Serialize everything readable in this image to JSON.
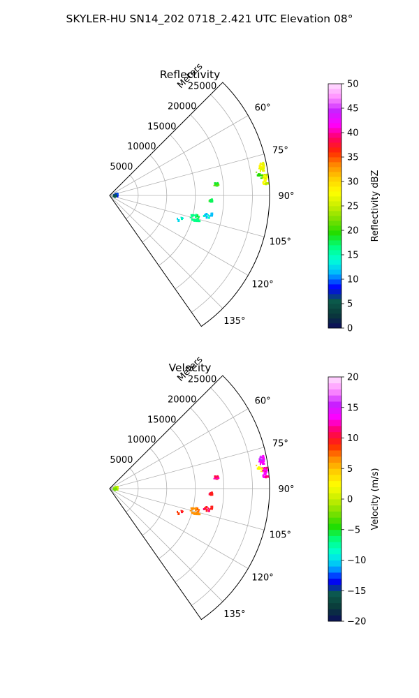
{
  "figure": {
    "suptitle": "SKYLER-HU  SN14_202  0718_2.421 UTC Elevation 08°"
  },
  "chart_data": [
    {
      "type": "polar-sector-scatter",
      "title": "Reflectivity",
      "radial_axis": {
        "label": "Meters",
        "ticks": [
          5000,
          10000,
          15000,
          20000,
          25000
        ],
        "tick_labels": [
          "5000",
          "10000",
          "15000",
          "20000",
          "25000"
        ],
        "range": [
          0,
          28000
        ]
      },
      "angular_axis": {
        "range_deg": [
          45,
          145
        ],
        "ticks": [
          60,
          75,
          90,
          105,
          120,
          135
        ],
        "tick_labels": [
          "60°",
          "75°",
          "90°",
          "105°",
          "120°",
          "135°"
        ]
      },
      "grid": true,
      "colorbar": {
        "label": "Reflectivity dBZ",
        "range": [
          0,
          50
        ],
        "ticks": [
          0,
          5,
          10,
          15,
          20,
          25,
          30,
          35,
          40,
          45,
          50
        ],
        "tick_labels": [
          "0",
          "5",
          "10",
          "15",
          "20",
          "25",
          "30",
          "35",
          "40",
          "45",
          "50"
        ],
        "levels": 50,
        "stops": [
          "#0b0b5c",
          "#0a3a3a",
          "#0b5a4a",
          "#0000ff",
          "#00b4ff",
          "#00ffd8",
          "#00ff80",
          "#22dd00",
          "#7de000",
          "#c8ee00",
          "#ffff00",
          "#ffd000",
          "#ff8c00",
          "#ff2800",
          "#ff0060",
          "#ff00ff",
          "#c820ff",
          "#ff90ff",
          "#ffe0ff"
        ]
      },
      "clusters": [
        {
          "r": 1200,
          "theta": 82,
          "spread_r": 400,
          "spread_t": 5,
          "n": 10,
          "value": 6
        },
        {
          "r": 1100,
          "theta": 97,
          "spread_r": 350,
          "spread_t": 4,
          "n": 8,
          "value": 5
        },
        {
          "r": 18800,
          "theta": 84.5,
          "spread_r": 300,
          "spread_t": 1.2,
          "n": 8,
          "value": 18
        },
        {
          "r": 17700,
          "theta": 92.5,
          "spread_r": 350,
          "spread_t": 1.0,
          "n": 8,
          "value": 17
        },
        {
          "r": 27100,
          "theta": 79.5,
          "spread_r": 400,
          "spread_t": 1.6,
          "n": 22,
          "value": 26
        },
        {
          "r": 27400,
          "theta": 84.0,
          "spread_r": 450,
          "spread_t": 1.8,
          "n": 26,
          "value": 24
        },
        {
          "r": 26500,
          "theta": 82.0,
          "spread_r": 500,
          "spread_t": 1.5,
          "n": 8,
          "value": 19
        },
        {
          "r": 15600,
          "theta": 104.5,
          "spread_r": 900,
          "spread_t": 2.0,
          "n": 26,
          "value": 16
        },
        {
          "r": 17600,
          "theta": 101.5,
          "spread_r": 700,
          "spread_t": 1.5,
          "n": 12,
          "value": 11
        },
        {
          "r": 12900,
          "theta": 108.5,
          "spread_r": 500,
          "spread_t": 1.5,
          "n": 5,
          "value": 12
        }
      ]
    },
    {
      "type": "polar-sector-scatter",
      "title": "Velocity",
      "radial_axis": {
        "label": "Meters",
        "ticks": [
          5000,
          10000,
          15000,
          20000,
          25000
        ],
        "tick_labels": [
          "5000",
          "10000",
          "15000",
          "20000",
          "25000"
        ],
        "range": [
          0,
          28000
        ]
      },
      "angular_axis": {
        "range_deg": [
          45,
          145
        ],
        "ticks": [
          60,
          75,
          90,
          105,
          120,
          135
        ],
        "tick_labels": [
          "60°",
          "75°",
          "90°",
          "105°",
          "120°",
          "135°"
        ]
      },
      "grid": true,
      "colorbar": {
        "label": "Velocity (m/s)",
        "range": [
          -20,
          20
        ],
        "ticks": [
          -20,
          -15,
          -10,
          -5,
          0,
          5,
          10,
          15,
          20
        ],
        "tick_labels": [
          "−20",
          "−15",
          "−10",
          "−5",
          "0",
          "5",
          "10",
          "15",
          "20"
        ],
        "levels": 40,
        "stops": [
          "#0b0b5c",
          "#0a3a3a",
          "#0b5a4a",
          "#0000ff",
          "#00b4ff",
          "#00ffd8",
          "#00ff80",
          "#22dd00",
          "#7de000",
          "#c8ee00",
          "#ffff00",
          "#ffd000",
          "#ff8c00",
          "#ff2800",
          "#ff0060",
          "#ff00ff",
          "#c820ff",
          "#ff90ff",
          "#ffe0ff"
        ]
      },
      "clusters": [
        {
          "r": 1200,
          "theta": 82,
          "spread_r": 400,
          "spread_t": 5,
          "n": 10,
          "value": -2
        },
        {
          "r": 1100,
          "theta": 97,
          "spread_r": 350,
          "spread_t": 4,
          "n": 8,
          "value": -3
        },
        {
          "r": 18800,
          "theta": 84.5,
          "spread_r": 300,
          "spread_t": 1.2,
          "n": 8,
          "value": 10
        },
        {
          "r": 17700,
          "theta": 92.5,
          "spread_r": 350,
          "spread_t": 1.0,
          "n": 8,
          "value": 9
        },
        {
          "r": 27100,
          "theta": 79.5,
          "spread_r": 400,
          "spread_t": 1.6,
          "n": 22,
          "value": 13
        },
        {
          "r": 27400,
          "theta": 84.0,
          "spread_r": 450,
          "spread_t": 1.8,
          "n": 26,
          "value": 11
        },
        {
          "r": 26500,
          "theta": 82.0,
          "spread_r": 500,
          "spread_t": 1.5,
          "n": 8,
          "value": 2
        },
        {
          "r": 15600,
          "theta": 104.5,
          "spread_r": 900,
          "spread_t": 2.0,
          "n": 26,
          "value": 6
        },
        {
          "r": 17600,
          "theta": 101.5,
          "spread_r": 700,
          "spread_t": 1.5,
          "n": 12,
          "value": 9
        },
        {
          "r": 12900,
          "theta": 108.5,
          "spread_r": 500,
          "spread_t": 1.5,
          "n": 5,
          "value": 8
        }
      ]
    }
  ]
}
